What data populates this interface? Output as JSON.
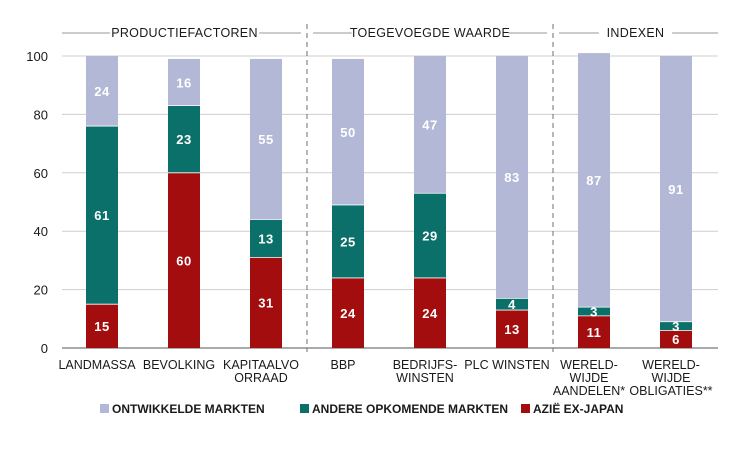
{
  "chart_data": {
    "type": "bar",
    "stacked": true,
    "percent": true,
    "ylim": [
      0,
      100
    ],
    "yticks": [
      0,
      20,
      40,
      60,
      80,
      100
    ],
    "groups": [
      {
        "label": "PRODUCTIEFACTOREN",
        "span": [
          0,
          2
        ]
      },
      {
        "label": "TOEGEVOEGDE WAARDE",
        "span": [
          3,
          5
        ]
      },
      {
        "label": "INDEXEN",
        "span": [
          6,
          7
        ]
      }
    ],
    "categories": [
      [
        "LANDMASSA"
      ],
      [
        "BEVOLKING"
      ],
      [
        "KAPITAALVO",
        "ORRAAD"
      ],
      [
        "BBP"
      ],
      [
        "BEDRIJFS-",
        "WINSTEN"
      ],
      [
        "PLC WINSTEN"
      ],
      [
        "WERELD-",
        "WIJDE",
        "AANDELEN*"
      ],
      [
        "WERELD-",
        "WIJDE",
        "OBLIGATIES**"
      ]
    ],
    "series": [
      {
        "name": "AZIË EX-JAPAN",
        "color": "#a30d0d",
        "values": [
          15,
          60,
          31,
          24,
          24,
          13,
          11,
          6
        ]
      },
      {
        "name": "ANDERE OPKOMENDE MARKTEN",
        "color": "#0c706a",
        "values": [
          61,
          23,
          13,
          25,
          29,
          4,
          3,
          3
        ]
      },
      {
        "name": "ONTWIKKELDE MARKTEN",
        "color": "#b3b8d6",
        "values": [
          24,
          16,
          55,
          50,
          47,
          83,
          87,
          91
        ]
      }
    ],
    "legend": [
      {
        "label": "ONTWIKKELDE MARKTEN",
        "color": "#b3b8d6"
      },
      {
        "label": "ANDERE OPKOMENDE MARKTEN",
        "color": "#0c706a"
      },
      {
        "label": "AZIË EX-JAPAN",
        "color": "#a30d0d"
      }
    ]
  }
}
